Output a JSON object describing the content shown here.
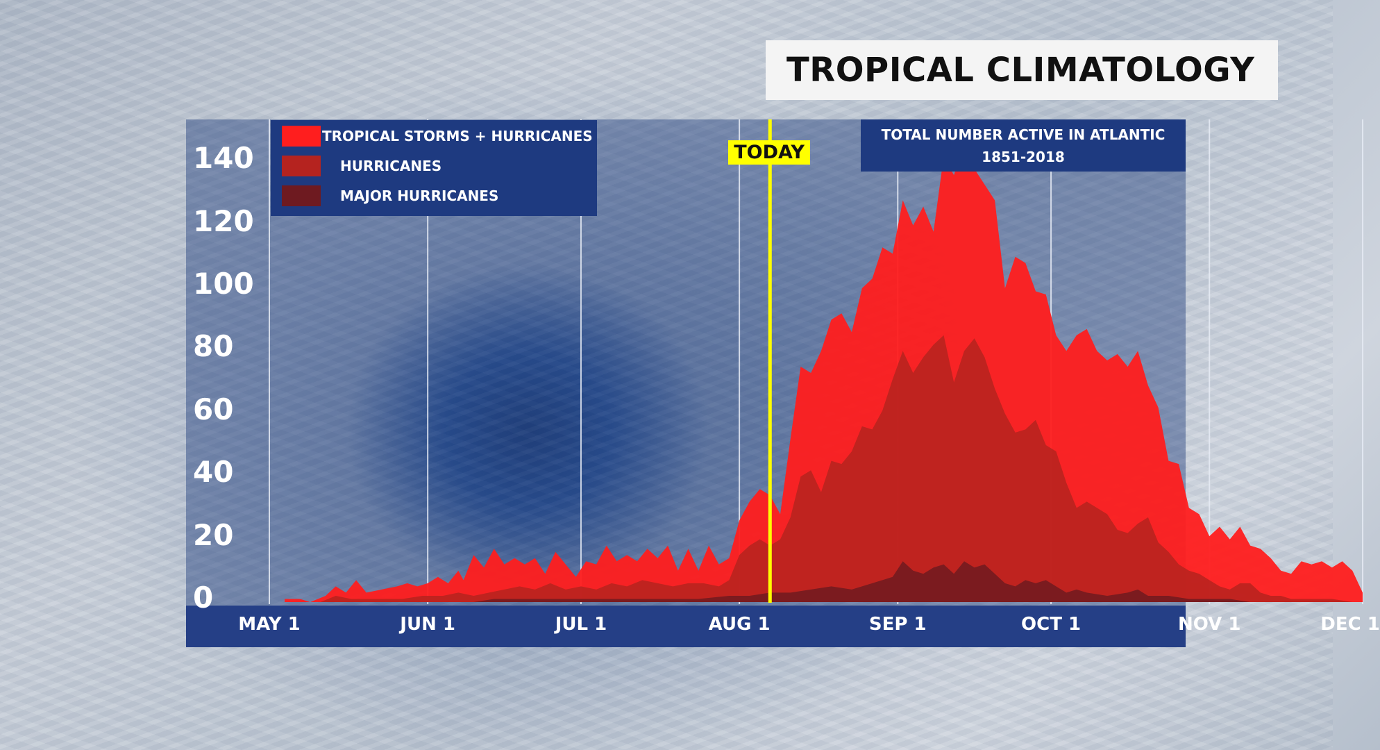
{
  "title": "TROPICAL CLIMATOLOGY",
  "info_box": {
    "line1": "TOTAL NUMBER ACTIVE IN ATLANTIC",
    "line2": "1851-2018"
  },
  "today_label": "TODAY",
  "legend": [
    {
      "label": "TROPICAL STORMS + HURRICANES",
      "color": "#ff1e1e"
    },
    {
      "label": "HURRICANES",
      "color": "#b5231f"
    },
    {
      "label": "MAJOR HURRICANES",
      "color": "#6e1a20"
    }
  ],
  "chart_data": {
    "type": "area",
    "title": "TROPICAL CLIMATOLOGY",
    "subtitle": "TOTAL NUMBER ACTIVE IN ATLANTIC 1851-2018",
    "xlabel": "",
    "ylabel": "",
    "ylim": [
      0,
      145
    ],
    "xlim_days_from_may1": [
      0,
      214
    ],
    "x_ticks": [
      {
        "label": "MAY 1",
        "day": 0
      },
      {
        "label": "JUN 1",
        "day": 31
      },
      {
        "label": "JUL 1",
        "day": 61
      },
      {
        "label": "AUG 1",
        "day": 92
      },
      {
        "label": "SEP 1",
        "day": 123
      },
      {
        "label": "OCT 1",
        "day": 153
      },
      {
        "label": "NOV 1",
        "day": 184
      },
      {
        "label": "DEC 1",
        "day": 214
      }
    ],
    "y_ticks": [
      0,
      20,
      40,
      60,
      80,
      100,
      120,
      140
    ],
    "today_day": 98,
    "legend_position": "top-left",
    "grid": "vertical",
    "series": [
      {
        "name": "TROPICAL STORMS + HURRICANES",
        "color": "#ff1e1e",
        "points": [
          [
            3,
            1
          ],
          [
            6,
            1
          ],
          [
            8,
            0
          ],
          [
            11,
            2
          ],
          [
            13,
            5
          ],
          [
            15,
            3
          ],
          [
            17,
            7
          ],
          [
            19,
            3
          ],
          [
            22,
            4
          ],
          [
            25,
            5
          ],
          [
            27,
            6
          ],
          [
            29,
            5
          ],
          [
            31,
            6
          ],
          [
            33,
            8
          ],
          [
            35,
            6
          ],
          [
            37,
            10
          ],
          [
            38,
            7
          ],
          [
            40,
            15
          ],
          [
            42,
            11
          ],
          [
            44,
            17
          ],
          [
            46,
            12
          ],
          [
            48,
            14
          ],
          [
            50,
            12
          ],
          [
            52,
            14
          ],
          [
            54,
            9
          ],
          [
            56,
            16
          ],
          [
            58,
            12
          ],
          [
            60,
            8
          ],
          [
            62,
            13
          ],
          [
            64,
            12
          ],
          [
            66,
            18
          ],
          [
            68,
            13
          ],
          [
            70,
            15
          ],
          [
            72,
            13
          ],
          [
            74,
            17
          ],
          [
            76,
            14
          ],
          [
            78,
            18
          ],
          [
            80,
            10
          ],
          [
            82,
            17
          ],
          [
            84,
            10
          ],
          [
            86,
            18
          ],
          [
            88,
            12
          ],
          [
            90,
            14
          ],
          [
            92,
            26
          ],
          [
            94,
            32
          ],
          [
            96,
            36
          ],
          [
            98,
            34
          ],
          [
            100,
            28
          ],
          [
            102,
            52
          ],
          [
            104,
            75
          ],
          [
            106,
            73
          ],
          [
            108,
            80
          ],
          [
            110,
            90
          ],
          [
            112,
            92
          ],
          [
            114,
            86
          ],
          [
            116,
            100
          ],
          [
            118,
            103
          ],
          [
            120,
            113
          ],
          [
            122,
            111
          ],
          [
            124,
            128
          ],
          [
            126,
            120
          ],
          [
            128,
            126
          ],
          [
            130,
            118
          ],
          [
            132,
            142
          ],
          [
            134,
            136
          ],
          [
            136,
            146
          ],
          [
            138,
            138
          ],
          [
            140,
            133
          ],
          [
            142,
            128
          ],
          [
            144,
            100
          ],
          [
            146,
            110
          ],
          [
            148,
            108
          ],
          [
            150,
            99
          ],
          [
            152,
            98
          ],
          [
            154,
            85
          ],
          [
            156,
            80
          ],
          [
            158,
            85
          ],
          [
            160,
            87
          ],
          [
            162,
            80
          ],
          [
            164,
            77
          ],
          [
            166,
            79
          ],
          [
            168,
            75
          ],
          [
            170,
            80
          ],
          [
            172,
            69
          ],
          [
            174,
            62
          ],
          [
            176,
            45
          ],
          [
            178,
            44
          ],
          [
            180,
            30
          ],
          [
            182,
            28
          ],
          [
            184,
            21
          ],
          [
            186,
            24
          ],
          [
            188,
            20
          ],
          [
            190,
            24
          ],
          [
            192,
            18
          ],
          [
            194,
            17
          ],
          [
            196,
            14
          ],
          [
            198,
            10
          ],
          [
            200,
            9
          ],
          [
            202,
            13
          ],
          [
            204,
            12
          ],
          [
            206,
            13
          ],
          [
            208,
            11
          ],
          [
            210,
            13
          ],
          [
            212,
            10
          ],
          [
            214,
            3
          ]
        ]
      },
      {
        "name": "HURRICANES",
        "color": "#b5231f",
        "points": [
          [
            3,
            0
          ],
          [
            10,
            0
          ],
          [
            13,
            2
          ],
          [
            16,
            1
          ],
          [
            20,
            1
          ],
          [
            26,
            1
          ],
          [
            30,
            2
          ],
          [
            34,
            2
          ],
          [
            37,
            3
          ],
          [
            40,
            2
          ],
          [
            43,
            3
          ],
          [
            46,
            4
          ],
          [
            49,
            5
          ],
          [
            52,
            4
          ],
          [
            55,
            6
          ],
          [
            58,
            4
          ],
          [
            61,
            5
          ],
          [
            64,
            4
          ],
          [
            67,
            6
          ],
          [
            70,
            5
          ],
          [
            73,
            7
          ],
          [
            76,
            6
          ],
          [
            79,
            5
          ],
          [
            82,
            6
          ],
          [
            85,
            6
          ],
          [
            88,
            5
          ],
          [
            90,
            7
          ],
          [
            92,
            15
          ],
          [
            94,
            18
          ],
          [
            96,
            20
          ],
          [
            98,
            18
          ],
          [
            100,
            20
          ],
          [
            102,
            27
          ],
          [
            104,
            40
          ],
          [
            106,
            42
          ],
          [
            108,
            35
          ],
          [
            110,
            45
          ],
          [
            112,
            44
          ],
          [
            114,
            48
          ],
          [
            116,
            56
          ],
          [
            118,
            55
          ],
          [
            120,
            61
          ],
          [
            122,
            71
          ],
          [
            124,
            80
          ],
          [
            126,
            73
          ],
          [
            128,
            78
          ],
          [
            130,
            82
          ],
          [
            132,
            85
          ],
          [
            134,
            70
          ],
          [
            136,
            80
          ],
          [
            138,
            84
          ],
          [
            140,
            78
          ],
          [
            142,
            68
          ],
          [
            144,
            60
          ],
          [
            146,
            54
          ],
          [
            148,
            55
          ],
          [
            150,
            58
          ],
          [
            152,
            50
          ],
          [
            154,
            48
          ],
          [
            156,
            38
          ],
          [
            158,
            30
          ],
          [
            160,
            32
          ],
          [
            162,
            30
          ],
          [
            164,
            28
          ],
          [
            166,
            23
          ],
          [
            168,
            22
          ],
          [
            170,
            25
          ],
          [
            172,
            27
          ],
          [
            174,
            19
          ],
          [
            176,
            16
          ],
          [
            178,
            12
          ],
          [
            180,
            10
          ],
          [
            182,
            9
          ],
          [
            184,
            7
          ],
          [
            186,
            5
          ],
          [
            188,
            4
          ],
          [
            190,
            6
          ],
          [
            192,
            6
          ],
          [
            194,
            3
          ],
          [
            196,
            2
          ],
          [
            198,
            2
          ],
          [
            200,
            1
          ],
          [
            204,
            1
          ],
          [
            208,
            1
          ],
          [
            212,
            0
          ]
        ]
      },
      {
        "name": "MAJOR HURRICANES",
        "color": "#6e1a20",
        "points": [
          [
            10,
            0
          ],
          [
            40,
            0
          ],
          [
            44,
            1
          ],
          [
            50,
            1
          ],
          [
            56,
            1
          ],
          [
            62,
            1
          ],
          [
            70,
            1
          ],
          [
            78,
            1
          ],
          [
            84,
            1
          ],
          [
            90,
            2
          ],
          [
            94,
            2
          ],
          [
            98,
            3
          ],
          [
            102,
            3
          ],
          [
            106,
            4
          ],
          [
            110,
            5
          ],
          [
            114,
            4
          ],
          [
            118,
            6
          ],
          [
            122,
            8
          ],
          [
            124,
            13
          ],
          [
            126,
            10
          ],
          [
            128,
            9
          ],
          [
            130,
            11
          ],
          [
            132,
            12
          ],
          [
            134,
            9
          ],
          [
            136,
            13
          ],
          [
            138,
            11
          ],
          [
            140,
            12
          ],
          [
            142,
            9
          ],
          [
            144,
            6
          ],
          [
            146,
            5
          ],
          [
            148,
            7
          ],
          [
            150,
            6
          ],
          [
            152,
            7
          ],
          [
            154,
            5
          ],
          [
            156,
            3
          ],
          [
            158,
            4
          ],
          [
            160,
            3
          ],
          [
            164,
            2
          ],
          [
            168,
            3
          ],
          [
            170,
            4
          ],
          [
            172,
            2
          ],
          [
            176,
            2
          ],
          [
            180,
            1
          ],
          [
            184,
            1
          ],
          [
            188,
            1
          ],
          [
            192,
            0
          ],
          [
            200,
            0
          ]
        ]
      }
    ]
  }
}
